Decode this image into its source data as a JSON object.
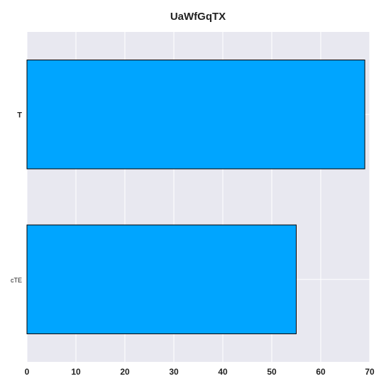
{
  "chart_data": {
    "type": "bar",
    "orientation": "horizontal",
    "title": "UaWfGqTX",
    "categories": [
      "T",
      "cTE"
    ],
    "values": [
      69,
      55
    ],
    "xlabel": "",
    "ylabel": "",
    "xlim": [
      0,
      70
    ],
    "xticks": [
      0,
      10,
      20,
      30,
      40,
      50,
      60,
      70
    ],
    "grid": true,
    "bar_color": "#00a5ff",
    "bar_edge_color": "#000000",
    "plot_background": "#e8e8f0"
  }
}
